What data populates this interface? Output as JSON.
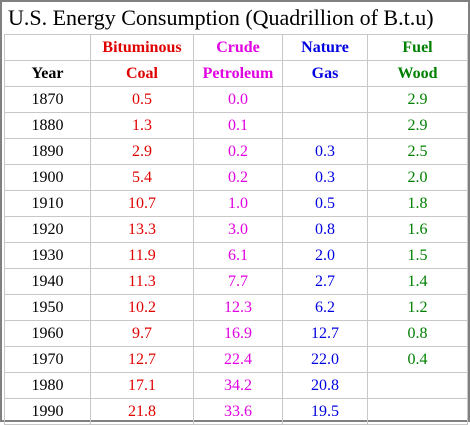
{
  "title": "U.S. Energy Consumption (Quadrillion of B.t.u)",
  "headers": {
    "row1": {
      "year": "",
      "coal": "Bituminous",
      "crude": "Crude",
      "gas": "Nature",
      "wood": "Fuel"
    },
    "row2": {
      "year": "Year",
      "coal": "Coal",
      "crude": "Petroleum",
      "gas": "Gas",
      "wood": "Wood"
    }
  },
  "colors": {
    "year": "#000000",
    "coal": "#e00000",
    "crude": "#e000e0",
    "gas": "#0000e0",
    "wood": "#008000"
  },
  "rows": [
    {
      "year": "1870",
      "coal": "0.5",
      "crude": "0.0",
      "gas": "",
      "wood": "2.9"
    },
    {
      "year": "1880",
      "coal": "1.3",
      "crude": "0.1",
      "gas": "",
      "wood": "2.9"
    },
    {
      "year": "1890",
      "coal": "2.9",
      "crude": "0.2",
      "gas": "0.3",
      "wood": "2.5"
    },
    {
      "year": "1900",
      "coal": "5.4",
      "crude": "0.2",
      "gas": "0.3",
      "wood": "2.0"
    },
    {
      "year": "1910",
      "coal": "10.7",
      "crude": "1.0",
      "gas": "0.5",
      "wood": "1.8"
    },
    {
      "year": "1920",
      "coal": "13.3",
      "crude": "3.0",
      "gas": "0.8",
      "wood": "1.6"
    },
    {
      "year": "1930",
      "coal": "11.9",
      "crude": "6.1",
      "gas": "2.0",
      "wood": "1.5"
    },
    {
      "year": "1940",
      "coal": "11.3",
      "crude": "7.7",
      "gas": "2.7",
      "wood": "1.4"
    },
    {
      "year": "1950",
      "coal": "10.2",
      "crude": "12.3",
      "gas": "6.2",
      "wood": "1.2"
    },
    {
      "year": "1960",
      "coal": "9.7",
      "crude": "16.9",
      "gas": "12.7",
      "wood": "0.8"
    },
    {
      "year": "1970",
      "coal": "12.7",
      "crude": "22.4",
      "gas": "22.0",
      "wood": "0.4"
    },
    {
      "year": "1980",
      "coal": "17.1",
      "crude": "34.2",
      "gas": "20.8",
      "wood": ""
    },
    {
      "year": "1990",
      "coal": "21.8",
      "crude": "33.6",
      "gas": "19.5",
      "wood": ""
    }
  ]
}
